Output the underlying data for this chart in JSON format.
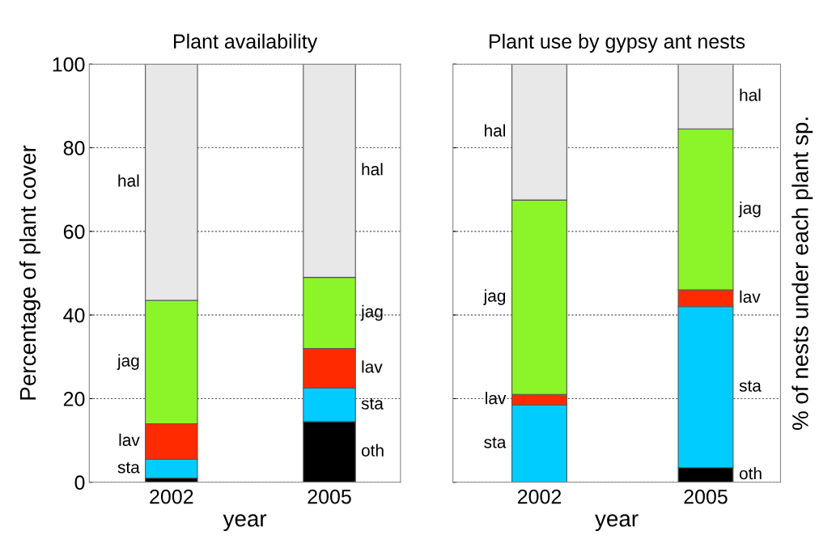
{
  "chart_data": [
    {
      "type": "bar",
      "stacked": true,
      "title": "Plant availability",
      "xlabel": "year",
      "ylabel": "Percentage of plant cover",
      "categories": [
        "2002",
        "2005"
      ],
      "ylim": [
        0,
        100
      ],
      "yticks": [
        0,
        20,
        40,
        60,
        80,
        100
      ],
      "grid": "y",
      "series": [
        {
          "name": "oth",
          "color": "#000000",
          "values": [
            1,
            14.5
          ]
        },
        {
          "name": "sta",
          "color": "#00ccff",
          "values": [
            4.5,
            8
          ]
        },
        {
          "name": "lav",
          "color": "#ff2a00",
          "values": [
            8.5,
            9.5
          ]
        },
        {
          "name": "jag",
          "color": "#8cf52a",
          "values": [
            29.5,
            17
          ]
        },
        {
          "name": "hal",
          "color": "#e8e8e8",
          "values": [
            56.5,
            51
          ]
        }
      ]
    },
    {
      "type": "bar",
      "stacked": true,
      "title": "Plant use by gypsy ant nests",
      "xlabel": "year",
      "ylabel": "% of nests under each plant sp.",
      "categories": [
        "2002",
        "2005"
      ],
      "ylim": [
        0,
        100
      ],
      "yticks": [
        0,
        20,
        40,
        60,
        80,
        100
      ],
      "grid": "y",
      "tick_labels": "x",
      "series": [
        {
          "name": "oth",
          "color": "#000000",
          "values": [
            0,
            3.5
          ]
        },
        {
          "name": "sta",
          "color": "#00ccff",
          "values": [
            18.5,
            38.5
          ]
        },
        {
          "name": "lav",
          "color": "#ff2a00",
          "values": [
            2.5,
            4
          ]
        },
        {
          "name": "jag",
          "color": "#8cf52a",
          "values": [
            46.5,
            38.5
          ]
        },
        {
          "name": "hal",
          "color": "#e8e8e8",
          "values": [
            32.5,
            15.5
          ]
        }
      ]
    }
  ]
}
